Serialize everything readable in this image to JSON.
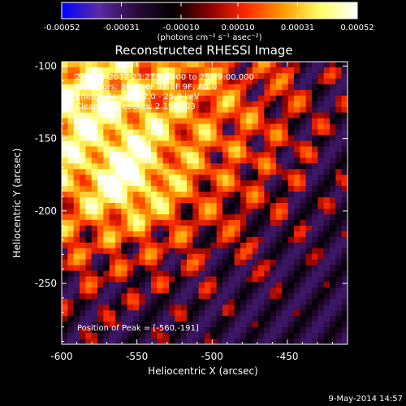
{
  "chart_data": {
    "type": "heatmap",
    "title": "Reconstructed RHESSI Image",
    "xlabel": "Heliocentric X (arcsec)",
    "ylabel": "Heliocentric Y (arcsec)",
    "x_ticks": [
      "-600",
      "-550",
      "-500",
      "-450"
    ],
    "x_tick_values": [
      -600,
      -550,
      -500,
      -450
    ],
    "y_ticks": [
      "-100",
      "-150",
      "-200",
      "-250"
    ],
    "y_tick_values": [
      -100,
      -150,
      -200,
      -250
    ],
    "xlim": [
      -600,
      -410
    ],
    "ylim": [
      -292,
      -97
    ],
    "colorbar": {
      "ticks": [
        "-0.00052",
        "-0.00031",
        "-0.00010",
        "0.00010",
        "0.00031",
        "0.00052"
      ],
      "tick_values": [
        -0.00052,
        -0.00031,
        -0.0001,
        0.0001,
        0.00031,
        0.00052
      ],
      "range": [
        -0.00052,
        0.00052
      ],
      "units": "(photons cm⁻² s⁻¹ asec⁻²)",
      "stops": [
        "#0000ff",
        "#5a2aa8",
        "#2a0a3a",
        "#000000",
        "#8a0000",
        "#ff2a00",
        "#ff9a00",
        "#ffff66",
        "#ffffff"
      ]
    },
    "annotations": [
      "29-May-2012 23:27:04.000 to 23:29:00.000",
      "Detectors: 3F 5F 6F 7F 8F 9F, Att 0",
      "Energy Range: 12.0 - 25.0 keV",
      "Clean    Total counts: 2.19E+03"
    ],
    "peak_label": "Position of Peak = [-560,-191]",
    "peak": [
      -560,
      -191
    ],
    "image_grid": {
      "cols": 48,
      "rows": 50,
      "description": "approximate intensity field; bright emission upper-left, dim/negative lower-right",
      "peak_fraction": 1.0
    }
  },
  "footer": {
    "date": "9-May-2014 14:57"
  }
}
